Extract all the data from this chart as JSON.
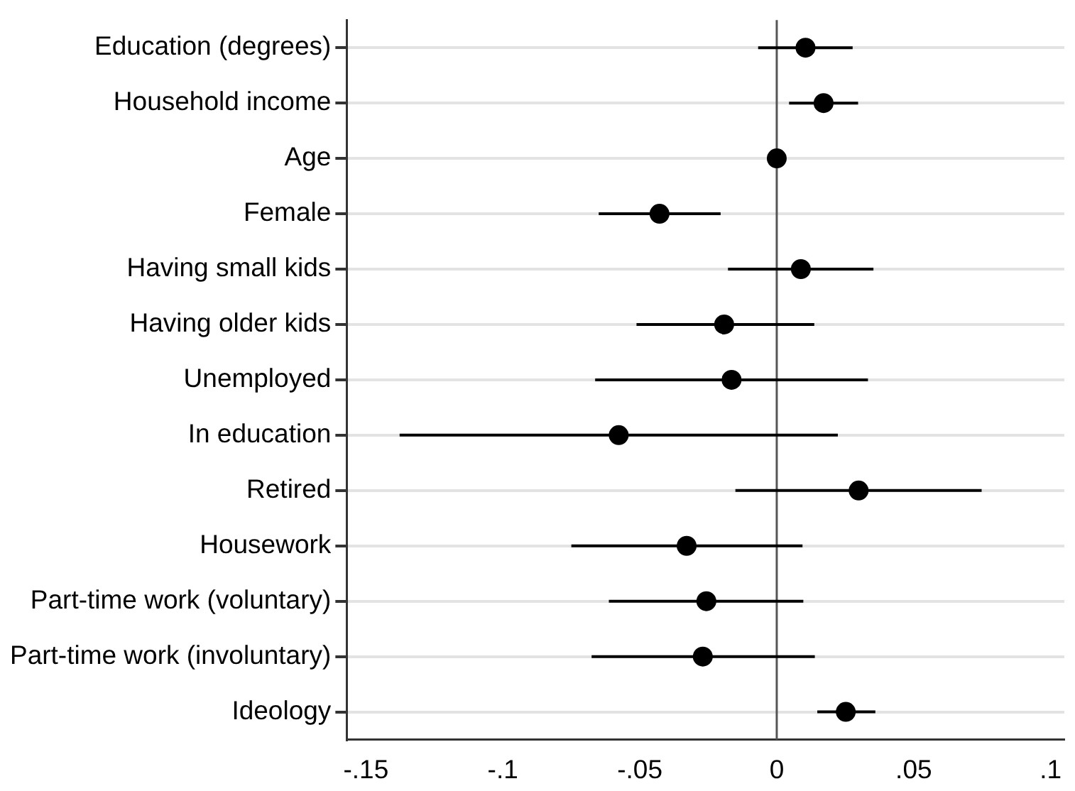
{
  "chart_data": {
    "type": "scatter",
    "orientation": "horizontal",
    "categories": [
      "Education (degrees)",
      "Household income",
      "Age",
      "Female",
      "Having small kids",
      "Having older kids",
      "Unemployed",
      "In education",
      "Retired",
      "Housework",
      "Part-time work (voluntary)",
      "Part-time work (involuntary)",
      "Ideology"
    ],
    "series": [
      {
        "color": "#000000",
        "values": [
          0.0105,
          0.0171,
          0,
          -0.0428,
          0.0088,
          -0.0192,
          -0.0165,
          -0.0577,
          0.0299,
          -0.0329,
          -0.0257,
          -0.027,
          0.0252
        ],
        "errors": [
          [
            -0.0068,
            0.0277
          ],
          [
            0.0045,
            0.0297
          ],
          null,
          [
            -0.065,
            -0.0205
          ],
          [
            -0.0178,
            0.0353
          ],
          [
            -0.0512,
            0.0137
          ],
          [
            -0.0663,
            0.0333
          ],
          [
            -0.1377,
            0.0223
          ],
          [
            -0.0151,
            0.0748
          ],
          [
            -0.075,
            0.0094
          ],
          [
            -0.0613,
            0.0097
          ],
          [
            -0.0676,
            0.0139
          ],
          [
            0.0148,
            0.036
          ]
        ]
      }
    ],
    "xlim": [
      -0.157,
      0.105
    ],
    "xticks": [
      {
        "value": -0.15,
        "label": "-.15"
      },
      {
        "value": -0.1,
        "label": "-.1"
      },
      {
        "value": -0.05,
        "label": "-.05"
      },
      0,
      {
        "value": 0.05,
        "label": ".05"
      },
      {
        "value": 0.1,
        "label": ".1"
      }
    ],
    "ref_lines": [
      {
        "axis": "x",
        "value": 0,
        "color": "#555555"
      }
    ],
    "grid": "y",
    "legend": false,
    "marker": "circle"
  }
}
